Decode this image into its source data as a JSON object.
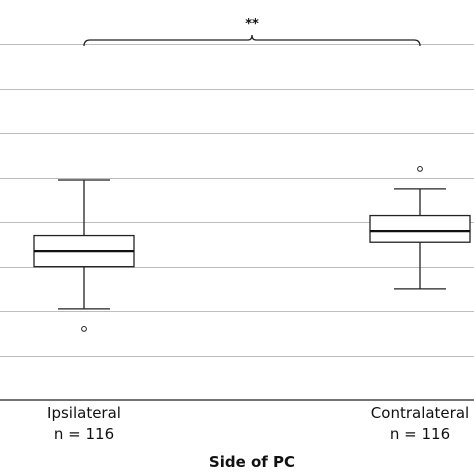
{
  "chart_data": {
    "type": "box",
    "xlabel": "Side of PC",
    "ylabel": "",
    "ylim": [
      0,
      9
    ],
    "grid": true,
    "gridlines": [
      1,
      2,
      3,
      4,
      5,
      6,
      7,
      8
    ],
    "categories": [
      "Ipsilateral",
      "Contralateral"
    ],
    "sample_sizes": [
      "n = 116",
      "n = 116"
    ],
    "boxes": [
      {
        "category": "Ipsilateral",
        "whisker_low": 2.05,
        "q1": 3.0,
        "median": 3.35,
        "q3": 3.7,
        "whisker_high": 4.95,
        "outliers": [
          1.6
        ]
      },
      {
        "category": "Contralateral",
        "whisker_low": 2.5,
        "q1": 3.55,
        "median": 3.8,
        "q3": 4.15,
        "whisker_high": 4.75,
        "outliers": [
          5.2
        ]
      }
    ],
    "significance": {
      "label": "**",
      "between": [
        "Ipsilateral",
        "Contralateral"
      ]
    }
  }
}
